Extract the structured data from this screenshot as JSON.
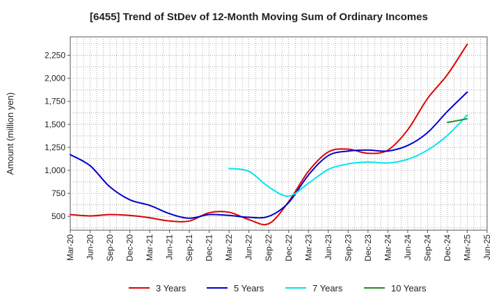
{
  "chart_data": {
    "type": "line",
    "title": "[6455]  Trend of StDev of 12-Month Moving Sum of Ordinary Incomes",
    "xlabel": "",
    "ylabel": "Amount (million yen)",
    "ylim": [
      350,
      2450
    ],
    "yticks": [
      500,
      750,
      1000,
      1250,
      1500,
      1750,
      2000,
      2250
    ],
    "ytick_labels": [
      "500",
      "750",
      "1,000",
      "1,250",
      "1,500",
      "1,750",
      "2,000",
      "2,250"
    ],
    "x_categories": [
      "Mar-20",
      "Jun-20",
      "Sep-20",
      "Dec-20",
      "Mar-21",
      "Jun-21",
      "Sep-21",
      "Dec-21",
      "Mar-22",
      "Jun-22",
      "Sep-22",
      "Dec-22",
      "Mar-23",
      "Jun-23",
      "Sep-23",
      "Dec-23",
      "Mar-24",
      "Jun-24",
      "Sep-24",
      "Dec-24",
      "Mar-25",
      "Jun-25"
    ],
    "grid": true,
    "legend_position": "bottom",
    "series": [
      {
        "name": "3 Years",
        "color": "#dd0000",
        "values": [
          520,
          505,
          520,
          510,
          485,
          450,
          450,
          540,
          545,
          465,
          420,
          660,
          990,
          1200,
          1230,
          1185,
          1220,
          1440,
          1780,
          2040,
          2370,
          null
        ]
      },
      {
        "name": "5 Years",
        "color": "#0000cc",
        "values": [
          1170,
          1050,
          820,
          680,
          620,
          530,
          480,
          520,
          510,
          490,
          500,
          650,
          950,
          1160,
          1210,
          1220,
          1210,
          1270,
          1410,
          1640,
          1850,
          null
        ]
      },
      {
        "name": "7 Years",
        "color": "#00e5ee",
        "values": [
          null,
          null,
          null,
          null,
          null,
          null,
          null,
          null,
          1020,
          990,
          820,
          720,
          860,
          1010,
          1070,
          1090,
          1080,
          1120,
          1220,
          1380,
          1600,
          null
        ]
      },
      {
        "name": "10 Years",
        "color": "#228b22",
        "values": [
          null,
          null,
          null,
          null,
          null,
          null,
          null,
          null,
          null,
          null,
          null,
          null,
          null,
          null,
          null,
          null,
          null,
          null,
          null,
          1520,
          1560,
          null
        ]
      }
    ]
  }
}
